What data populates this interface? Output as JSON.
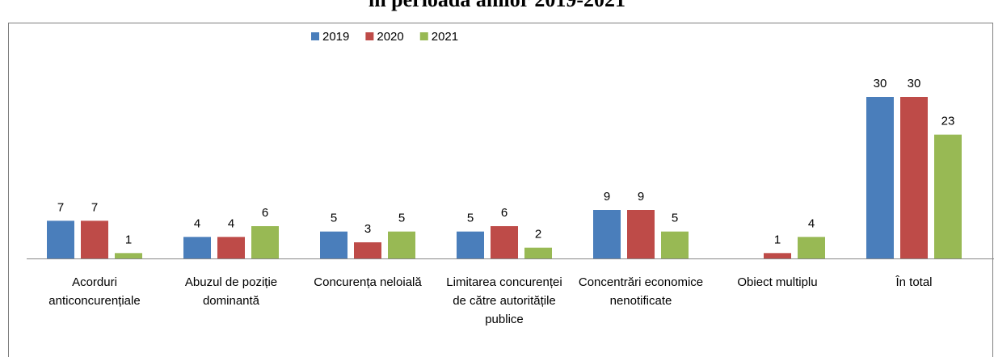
{
  "chart_data": {
    "type": "bar",
    "title": "în perioada anilor 2019-2021",
    "categories": [
      "Acorduri anticoncurențiale",
      "Abuzul de poziție dominantă",
      "Concurența neloială",
      "Limitarea concurenței de către autoritățile publice",
      "Concentrări economice nenotificate",
      "Obiect multiplu",
      "În total"
    ],
    "series": [
      {
        "name": "2019",
        "color": "#4a7ebb",
        "values": [
          7,
          4,
          5,
          5,
          9,
          null,
          30
        ]
      },
      {
        "name": "2020",
        "color": "#be4b48",
        "values": [
          7,
          4,
          3,
          6,
          9,
          1,
          30
        ]
      },
      {
        "name": "2021",
        "color": "#98b954",
        "values": [
          1,
          6,
          5,
          2,
          5,
          4,
          23
        ]
      }
    ],
    "ylim": [
      0,
      30
    ],
    "legend": "top"
  }
}
